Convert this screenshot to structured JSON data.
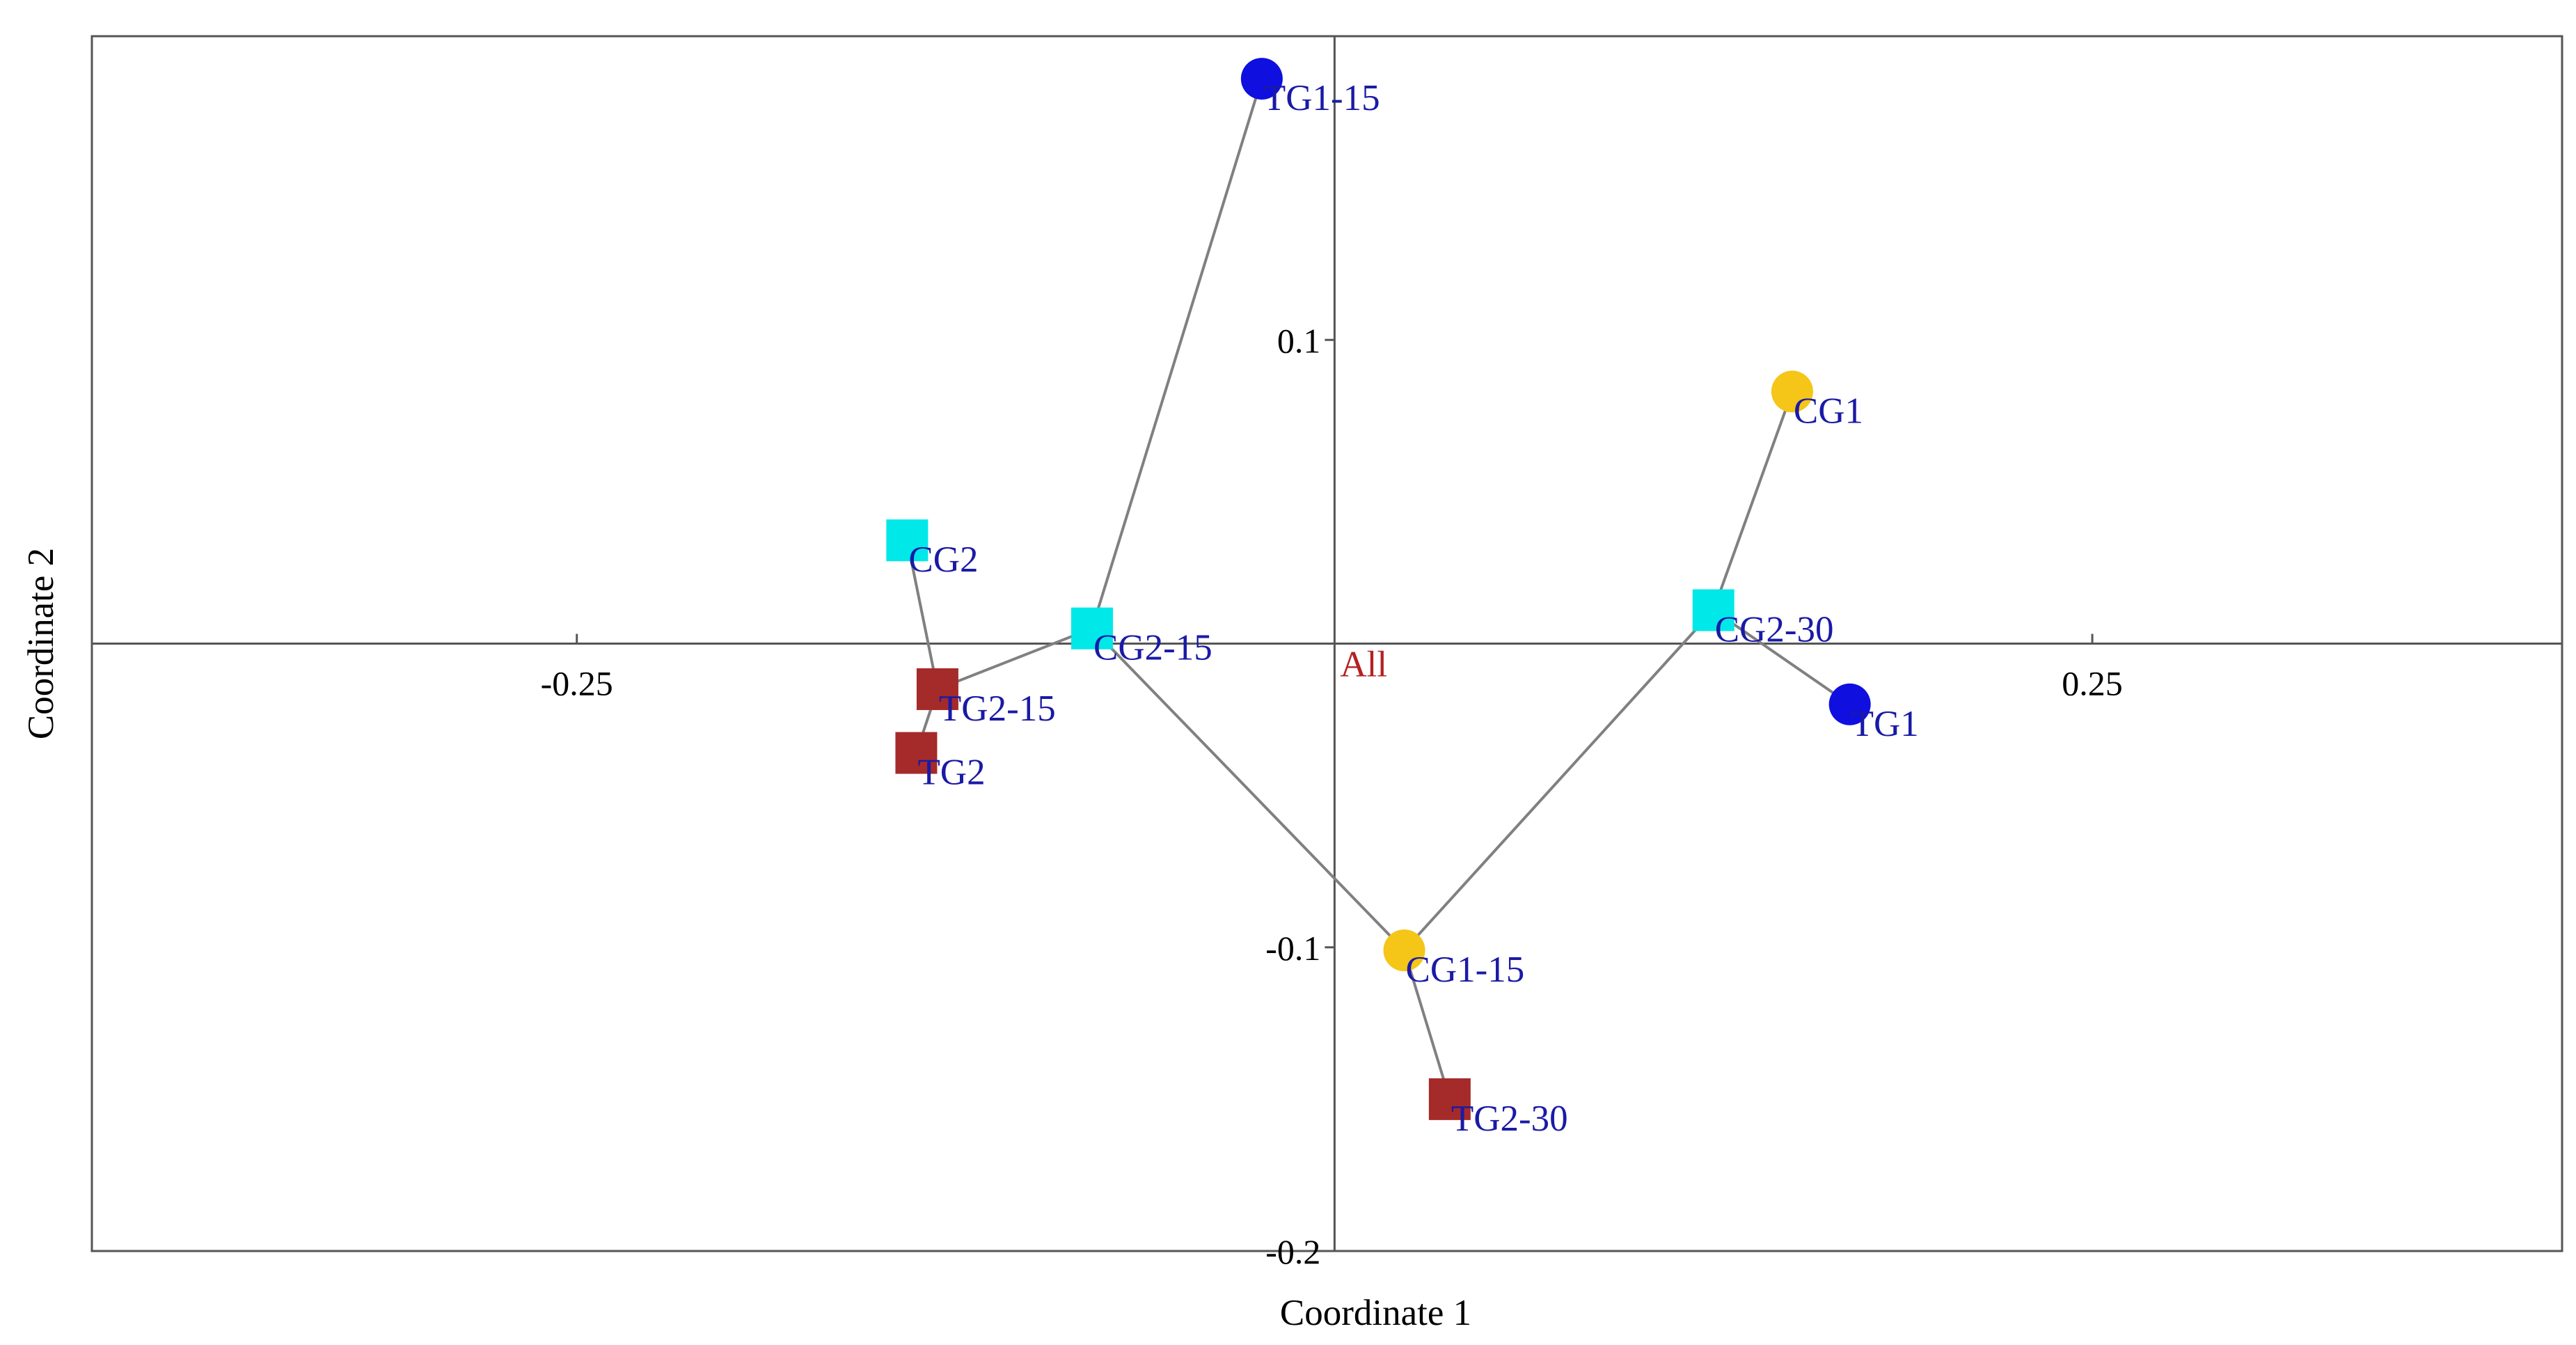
{
  "chart_data": {
    "type": "scatter",
    "title": "",
    "xlabel": "Coordinate 1",
    "ylabel": "Coordinate 2",
    "xlim": [
      -0.41,
      0.405
    ],
    "ylim": [
      -0.2,
      0.2
    ],
    "grid": false,
    "x_ticks": [
      {
        "value": -0.25,
        "label": "-0.25"
      },
      {
        "value": 0.25,
        "label": "0.25"
      }
    ],
    "y_ticks": [
      {
        "value": 0.1,
        "label": "0.1"
      },
      {
        "value": -0.1,
        "label": "-0.1"
      },
      {
        "value": -0.2,
        "label": "-0.2"
      }
    ],
    "center": {
      "label": "All",
      "x": 0.0,
      "y": 0.0,
      "color": "#b22222"
    },
    "point_label_color": "#1a1aa6",
    "line_color": "#808080",
    "points": [
      {
        "label": "TG1-15",
        "x": -0.024,
        "y": 0.186,
        "shape": "circle",
        "color": "#0f0fe0"
      },
      {
        "label": "CG1",
        "x": 0.151,
        "y": 0.083,
        "shape": "circle",
        "color": "#f5c518"
      },
      {
        "label": "CG2",
        "x": -0.141,
        "y": 0.034,
        "shape": "square",
        "color": "#00e8e8"
      },
      {
        "label": "CG2-15",
        "x": -0.08,
        "y": 0.005,
        "shape": "square",
        "color": "#00e8e8"
      },
      {
        "label": "CG2-30",
        "x": 0.125,
        "y": 0.011,
        "shape": "square",
        "color": "#00e8e8"
      },
      {
        "label": "TG1",
        "x": 0.17,
        "y": -0.02,
        "shape": "circle",
        "color": "#0f0fe0"
      },
      {
        "label": "TG2-15",
        "x": -0.131,
        "y": -0.015,
        "shape": "square",
        "color": "#a52a2a"
      },
      {
        "label": "TG2",
        "x": -0.138,
        "y": -0.036,
        "shape": "square",
        "color": "#a52a2a"
      },
      {
        "label": "CG1-15",
        "x": 0.023,
        "y": -0.101,
        "shape": "circle",
        "color": "#f5c518"
      },
      {
        "label": "TG2-30",
        "x": 0.038,
        "y": -0.15,
        "shape": "square",
        "color": "#a52a2a"
      }
    ],
    "edges": [
      [
        "TG1-15",
        "CG2-15"
      ],
      [
        "CG2",
        "TG2-15"
      ],
      [
        "TG2-15",
        "TG2"
      ],
      [
        "TG2-15",
        "CG2-15"
      ],
      [
        "CG2-15",
        "CG1-15"
      ],
      [
        "CG1-15",
        "TG2-30"
      ],
      [
        "CG1-15",
        "CG2-30"
      ],
      [
        "CG2-30",
        "CG1"
      ],
      [
        "CG2-30",
        "TG1"
      ]
    ]
  }
}
